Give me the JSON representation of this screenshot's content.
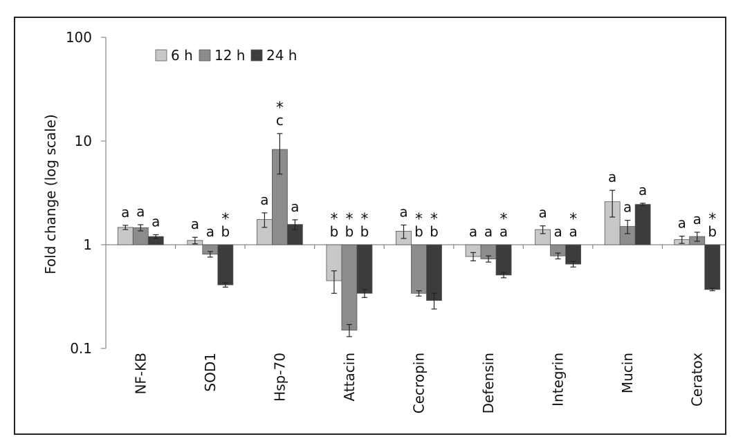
{
  "chart_data": {
    "type": "bar",
    "title": "",
    "xlabel": "",
    "ylabel": "Fold change  (log scale)",
    "yscale": "log",
    "ylim": [
      0.1,
      100
    ],
    "y_ticks": [
      "0.1",
      "1",
      "10",
      "100"
    ],
    "baseline": 1,
    "grid": false,
    "legend_position": "top-left",
    "categories": [
      "NF-KB",
      "SOD1",
      "Hsp-70",
      "Attacin",
      "Cecropin",
      "Defensin",
      "Integrin",
      "Mucin",
      "Ceratox"
    ],
    "series": [
      {
        "name": "6 h",
        "color": "#c8c8c8",
        "values": [
          1.47,
          1.1,
          1.75,
          0.45,
          1.35,
          0.77,
          1.4,
          2.6,
          1.12
        ],
        "errors": [
          0.07,
          0.08,
          0.28,
          0.11,
          0.2,
          0.07,
          0.12,
          0.75,
          0.09
        ],
        "labels": [
          [
            "a"
          ],
          [
            "a"
          ],
          [
            "a"
          ],
          [
            "*",
            "b"
          ],
          [
            "a"
          ],
          [
            "a"
          ],
          [
            "a"
          ],
          [
            "a"
          ],
          [
            "a"
          ]
        ]
      },
      {
        "name": "12 h",
        "color": "#8c8c8c",
        "values": [
          1.46,
          0.81,
          8.3,
          0.15,
          0.34,
          0.73,
          0.78,
          1.5,
          1.2
        ],
        "errors": [
          0.1,
          0.05,
          3.5,
          0.02,
          0.02,
          0.05,
          0.05,
          0.22,
          0.12
        ],
        "labels": [
          [
            "a"
          ],
          [
            "a"
          ],
          [
            "*",
            "c"
          ],
          [
            "*",
            "b"
          ],
          [
            "*",
            "b"
          ],
          [
            "a"
          ],
          [
            "a"
          ],
          [
            "a"
          ],
          [
            "a"
          ]
        ]
      },
      {
        "name": "24 h",
        "color": "#3c3c3c",
        "values": [
          1.2,
          0.41,
          1.57,
          0.34,
          0.29,
          0.51,
          0.65,
          2.45,
          0.37
        ],
        "errors": [
          0.05,
          0.02,
          0.17,
          0.03,
          0.05,
          0.03,
          0.04,
          0.06,
          0.01
        ],
        "labels": [
          [
            "a"
          ],
          [
            "*",
            "b"
          ],
          [
            "a"
          ],
          [
            "*",
            "b"
          ],
          [
            "*",
            "b"
          ],
          [
            "*",
            "a"
          ],
          [
            "*",
            "a"
          ],
          [
            "a"
          ],
          [
            "*",
            "b"
          ]
        ]
      }
    ]
  }
}
